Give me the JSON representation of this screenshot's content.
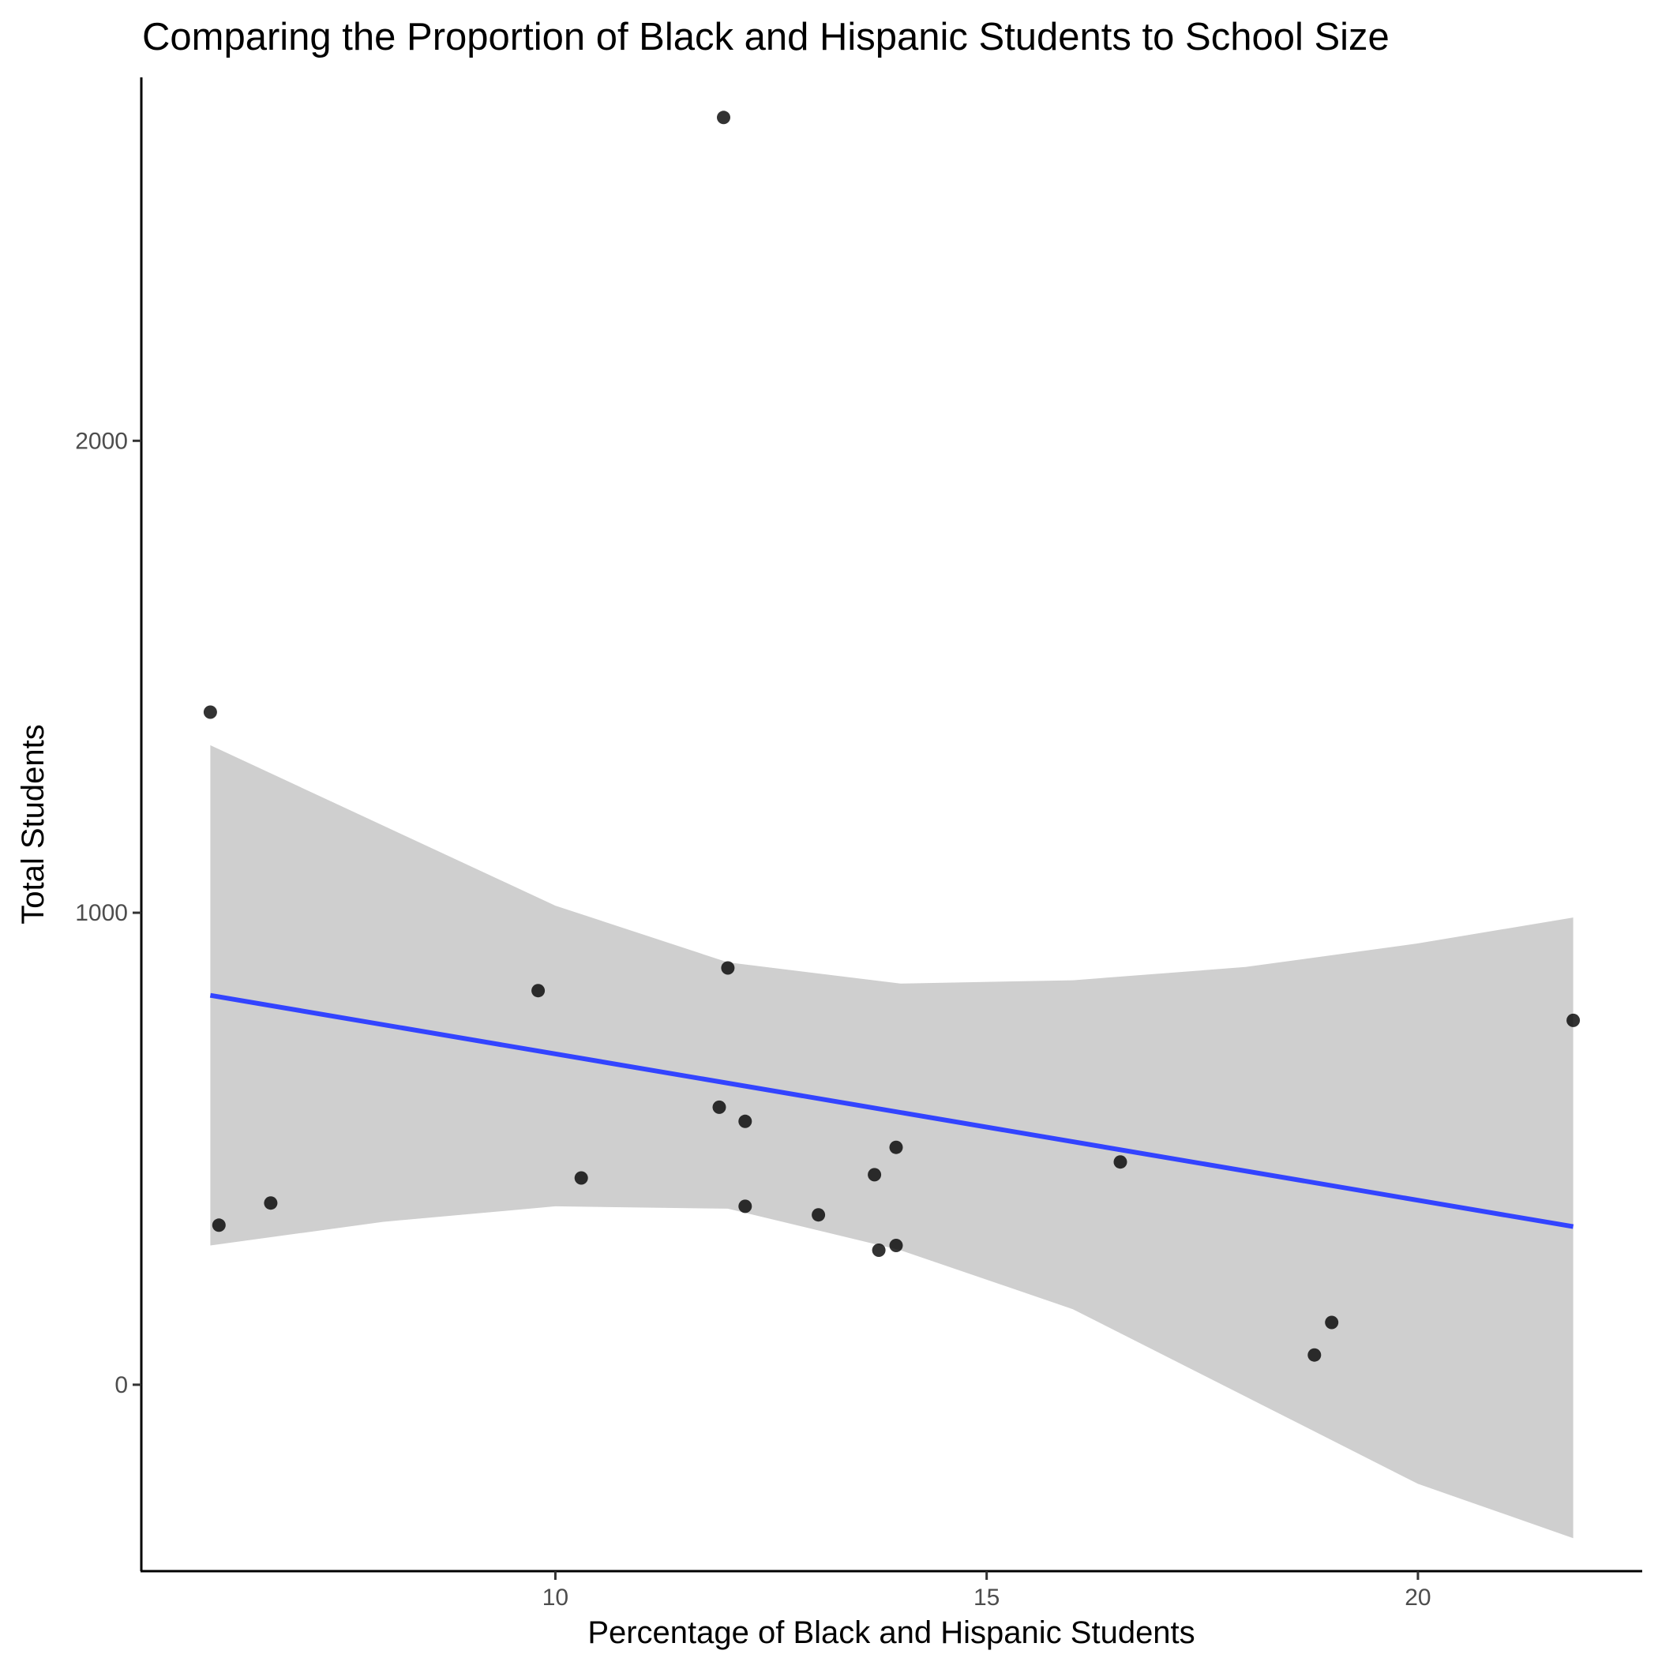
{
  "chart_data": {
    "type": "scatter",
    "title": "Comparing the Proportion of Black and Hispanic Students to School Size",
    "xlabel": "Percentage of Black and Hispanic Students",
    "ylabel": "Total Students",
    "xlim": [
      5.2,
      22.6
    ],
    "ylim": [
      -395,
      2770
    ],
    "x_ticks": [
      10,
      15,
      20
    ],
    "x_tick_labels": [
      "10",
      "15",
      "20"
    ],
    "y_ticks": [
      0,
      1000,
      2000
    ],
    "y_tick_labels": [
      "0",
      "1000",
      "2000"
    ],
    "grid": false,
    "legend": "none",
    "point_color": "#000000",
    "point_opacity": 0.8,
    "series": [
      {
        "values": [
          {
            "x": 6.0,
            "y": 1425
          },
          {
            "x": 6.1,
            "y": 338
          },
          {
            "x": 6.7,
            "y": 385
          },
          {
            "x": 9.8,
            "y": 835
          },
          {
            "x": 10.3,
            "y": 438
          },
          {
            "x": 11.9,
            "y": 588
          },
          {
            "x": 11.95,
            "y": 2685
          },
          {
            "x": 12.0,
            "y": 883
          },
          {
            "x": 12.2,
            "y": 378
          },
          {
            "x": 12.2,
            "y": 558
          },
          {
            "x": 13.05,
            "y": 360
          },
          {
            "x": 13.7,
            "y": 445
          },
          {
            "x": 13.75,
            "y": 285
          },
          {
            "x": 13.95,
            "y": 503
          },
          {
            "x": 13.95,
            "y": 295
          },
          {
            "x": 16.55,
            "y": 472
          },
          {
            "x": 18.8,
            "y": 63
          },
          {
            "x": 19.0,
            "y": 132
          },
          {
            "x": 21.8,
            "y": 772
          }
        ]
      }
    ],
    "trend_line": {
      "type": "linear",
      "color": "#3344ff",
      "x": [
        6.0,
        21.8
      ],
      "y": [
        825,
        335
      ]
    },
    "confidence_band": {
      "color": "#cfcfcf",
      "x": [
        6.0,
        8.0,
        10.0,
        12.0,
        14.0,
        16.0,
        18.0,
        20.0,
        21.8
      ],
      "upper": [
        1355,
        1185,
        1015,
        895,
        850,
        857,
        885,
        935,
        990
      ],
      "lower": [
        295,
        345,
        378,
        373,
        285,
        160,
        -25,
        -210,
        -325
      ]
    }
  }
}
